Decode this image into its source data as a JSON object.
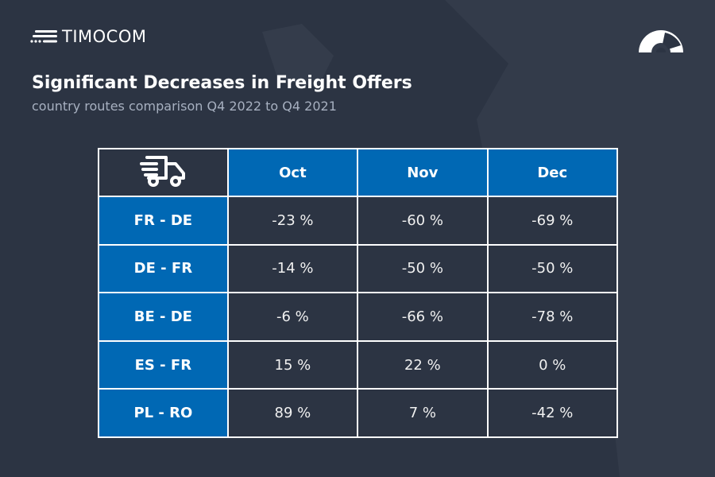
{
  "brand": {
    "name": "TIMOCOM",
    "logo_icon": "timocom-lines-icon",
    "gauge_icon": "speedometer-icon"
  },
  "header": {
    "title": "Significant Decreases in Freight Offers",
    "subtitle": "country routes comparison Q4 2022 to Q4 2021"
  },
  "colors": {
    "background": "#2c3443",
    "accent": "#0068b4"
  },
  "chart_data": {
    "type": "table",
    "corner_icon": "fast-truck-icon",
    "columns": [
      "Oct",
      "Nov",
      "Dec"
    ],
    "rows": [
      {
        "route": "FR - DE",
        "values": [
          "-23 %",
          "-60 %",
          "-69 %"
        ]
      },
      {
        "route": "DE - FR",
        "values": [
          "-14 %",
          "-50 %",
          "-50 %"
        ]
      },
      {
        "route": "BE - DE",
        "values": [
          "-6 %",
          "-66 %",
          "-78 %"
        ]
      },
      {
        "route": "ES - FR",
        "values": [
          "15 %",
          "22 %",
          "0 %"
        ]
      },
      {
        "route": "PL - RO",
        "values": [
          "89 %",
          "7 %",
          "-42 %"
        ]
      }
    ]
  }
}
